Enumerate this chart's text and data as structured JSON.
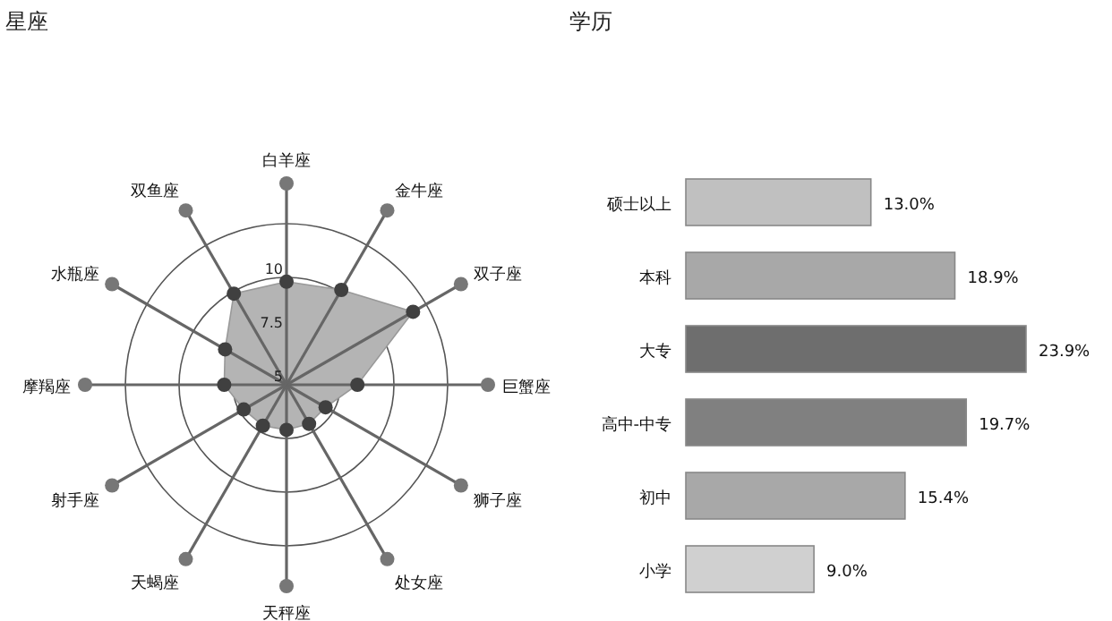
{
  "chart_data": [
    {
      "type": "radar",
      "title": "星座",
      "categories": [
        "白羊座",
        "金牛座",
        "双子座",
        "巨蟹座",
        "狮子座",
        "处女座",
        "天秤座",
        "天蝎座",
        "射手座",
        "摩羯座",
        "水瓶座",
        "双鱼座"
      ],
      "series": [
        {
          "color": "#b4b4b4",
          "values": [
            9.8,
            10.1,
            11.8,
            8.3,
            7.1,
            7.1,
            7.1,
            7.2,
            7.3,
            7.9,
            8.3,
            9.9
          ]
        }
      ],
      "ylim": [
        5,
        12.5
      ],
      "yticks": [
        5,
        7.5,
        10
      ],
      "grid": true,
      "marker": "circle"
    },
    {
      "type": "bar",
      "title": "学历",
      "orientation": "horizontal",
      "categories": [
        "硕士以上",
        "本科",
        "大专",
        "高中-中专",
        "初中",
        "小学"
      ],
      "values": [
        13.0,
        18.9,
        23.9,
        19.7,
        15.4,
        9.0
      ],
      "colors": [
        "#c0c0c0",
        "#a8a8a8",
        "#6e6e6e",
        "#808080",
        "#a8a8a8",
        "#d0d0d0"
      ],
      "value_labels": [
        "13.0%",
        "18.9%",
        "23.9%",
        "19.7%",
        "15.4%",
        "9.0%"
      ]
    }
  ]
}
